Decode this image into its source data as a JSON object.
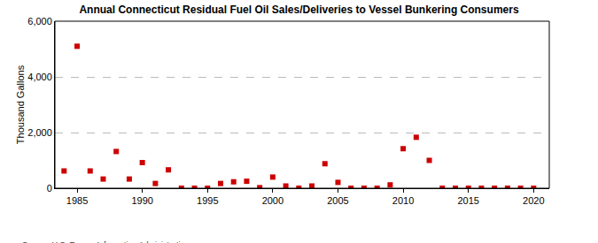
{
  "chart_data": {
    "type": "scatter",
    "title": "Annual Connecticut Residual Fuel Oil Sales/Deliveries to Vessel Bunkering Consumers",
    "y_label": "Thousand Gallons",
    "annotations": [
      "Source: U.S. Energy Information Administration"
    ],
    "x": [
      1984,
      1985,
      1986,
      1987,
      1988,
      1989,
      1990,
      1991,
      1992,
      1993,
      1994,
      1995,
      1996,
      1997,
      1998,
      1999,
      2000,
      2001,
      2002,
      2003,
      2004,
      2005,
      2006,
      2007,
      2008,
      2009,
      2010,
      2011,
      2012,
      2013,
      2014,
      2015,
      2016,
      2017,
      2018,
      2019,
      2020
    ],
    "values": [
      620,
      5100,
      620,
      330,
      1320,
      330,
      920,
      170,
      660,
      0,
      0,
      0,
      170,
      230,
      250,
      20,
      400,
      80,
      0,
      80,
      880,
      210,
      0,
      0,
      0,
      120,
      1420,
      1830,
      1000,
      0,
      0,
      0,
      0,
      0,
      0,
      0,
      0
    ],
    "color": "#cc0000",
    "marker": "square",
    "xlim": [
      1983.3,
      2021.2
    ],
    "xticks": [
      1985,
      1990,
      1995,
      2000,
      2005,
      2010,
      2015,
      2020
    ],
    "ylim": [
      0,
      6000
    ],
    "yticks": [
      0,
      {
        "value": 2000,
        "label": "2,000"
      },
      {
        "value": 4000,
        "label": "4,000"
      },
      {
        "value": 6000,
        "label": "6,000"
      }
    ],
    "grid": true
  }
}
